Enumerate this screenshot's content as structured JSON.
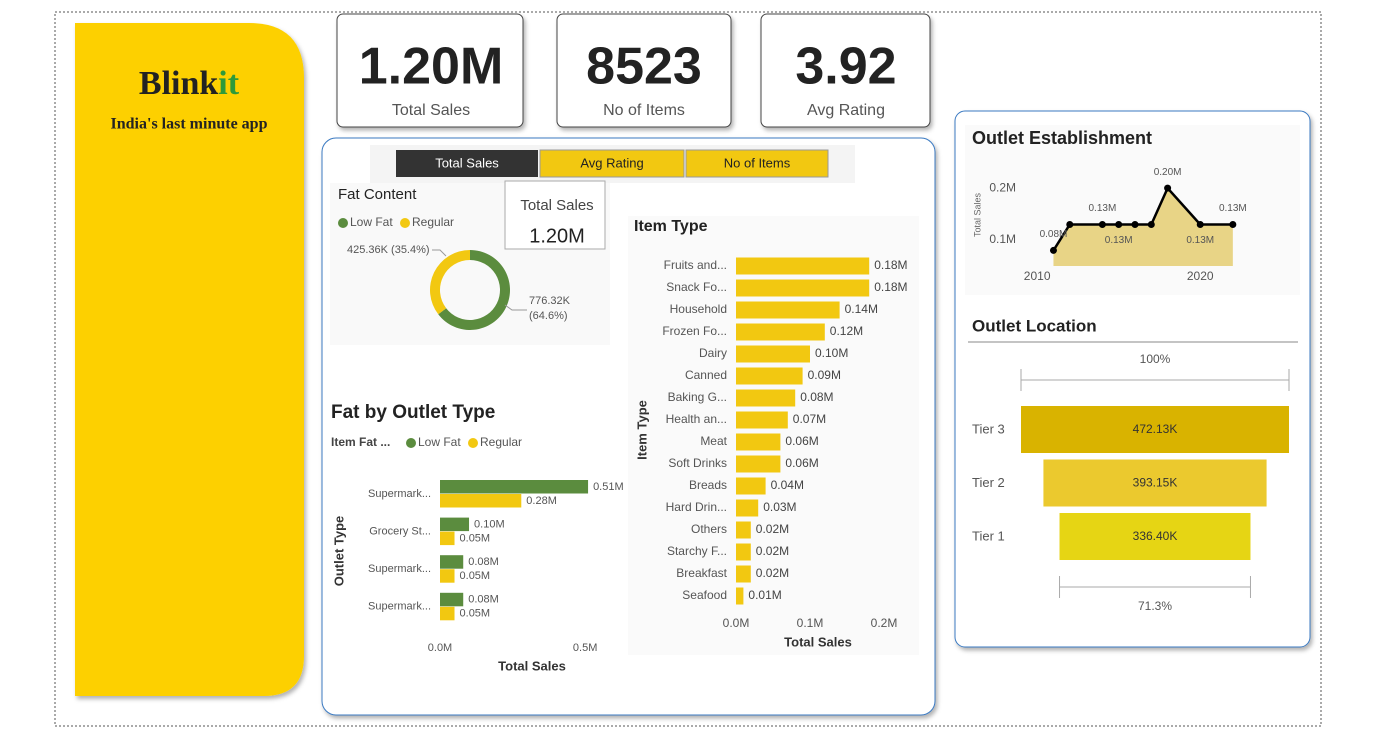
{
  "brand": {
    "name_part1": "Blink",
    "name_part2": "it",
    "tagline": "India's last minute app"
  },
  "kpis": [
    {
      "value": "1.20M",
      "label": "Total Sales"
    },
    {
      "value": "8523",
      "label": "No of Items"
    },
    {
      "value": "3.92",
      "label": "Avg Rating"
    }
  ],
  "buttons": [
    "Total Sales",
    "Avg Rating",
    "No of Items"
  ],
  "card": {
    "label": "Total Sales",
    "value": "1.20M"
  },
  "chart_data": [
    {
      "type": "pie",
      "title": "Fat Content",
      "categories": [
        "Low Fat",
        "Regular"
      ],
      "colors": [
        "#5b8c3e",
        "#f2c811"
      ],
      "values": [
        776320,
        425360
      ],
      "value_labels": [
        "776.32K (64.6%)",
        "425.36K (35.4%)"
      ],
      "donut": true,
      "legend": "top-left"
    },
    {
      "type": "grouped_hbar",
      "title": "Fat by Outlet Type",
      "legend_title": "Item Fat ...",
      "categories": [
        "Supermark...",
        "Grocery St...",
        "Supermark...",
        "Supermark..."
      ],
      "series": [
        {
          "name": "Low Fat",
          "color": "#5b8c3e",
          "values": [
            0.51,
            0.1,
            0.08,
            0.08
          ],
          "value_labels": [
            "0.51M",
            "0.10M",
            "0.08M",
            "0.08M"
          ]
        },
        {
          "name": "Regular",
          "color": "#f2c811",
          "values": [
            0.28,
            0.05,
            0.05,
            0.05
          ],
          "value_labels": [
            "0.28M",
            "0.05M",
            "0.05M",
            "0.05M"
          ]
        }
      ],
      "xlim": [
        0,
        0.62
      ],
      "xticks": [
        {
          "value": 0,
          "label": "0.0M"
        },
        {
          "value": 0.5,
          "label": "0.5M"
        }
      ],
      "xlabel": "Total Sales",
      "ylabel": "Outlet Type",
      "legend": "top-left"
    },
    {
      "type": "hbar",
      "title": "Item Type",
      "color": "#f2c811",
      "categories": [
        "Fruits and...",
        "Snack Fo...",
        "Household",
        "Frozen Fo...",
        "Dairy",
        "Canned",
        "Baking G...",
        "Health an...",
        "Meat",
        "Soft Drinks",
        "Breads",
        "Hard Drin...",
        "Others",
        "Starchy F...",
        "Breakfast",
        "Seafood"
      ],
      "values": [
        0.18,
        0.18,
        0.14,
        0.12,
        0.1,
        0.09,
        0.08,
        0.07,
        0.06,
        0.06,
        0.04,
        0.03,
        0.02,
        0.02,
        0.02,
        0.01
      ],
      "value_labels": [
        "0.18M",
        "0.18M",
        "0.14M",
        "0.12M",
        "0.10M",
        "0.09M",
        "0.08M",
        "0.07M",
        "0.06M",
        "0.06M",
        "0.04M",
        "0.03M",
        "0.02M",
        "0.02M",
        "0.02M",
        "0.01M"
      ],
      "xlim": [
        0,
        0.2
      ],
      "xticks": [
        {
          "value": 0,
          "label": "0.0M"
        },
        {
          "value": 0.1,
          "label": "0.1M"
        },
        {
          "value": 0.2,
          "label": "0.2M"
        }
      ],
      "xlabel": "Total Sales",
      "ylabel": "Item Type"
    },
    {
      "type": "area",
      "title": "Outlet Establishment",
      "color": "#e8d486",
      "line_color": "#000000",
      "x": [
        2011,
        2012,
        2014,
        2015,
        2016,
        2017,
        2018,
        2020,
        2022
      ],
      "values": [
        0.08,
        0.13,
        0.13,
        0.13,
        0.13,
        0.13,
        0.2,
        0.13,
        0.13
      ],
      "value_labels": [
        "0.08M",
        null,
        "0.13M",
        "0.13M",
        null,
        null,
        "0.20M",
        "0.13M",
        "0.13M"
      ],
      "xlim": [
        2009.5,
        2022.5
      ],
      "xticks": [
        2010,
        2020
      ],
      "ylim": [
        0.05,
        0.235
      ],
      "yticks": [
        {
          "value": 0.1,
          "label": "0.1M"
        },
        {
          "value": 0.2,
          "label": "0.2M"
        }
      ],
      "ylabel": "Total Sales"
    },
    {
      "type": "funnel",
      "title": "Outlet Location",
      "categories": [
        "Tier 3",
        "Tier 2",
        "Tier 1"
      ],
      "values": [
        472130,
        393150,
        336400
      ],
      "value_labels": [
        "472.13K",
        "393.15K",
        "336.40K"
      ],
      "colors": [
        "#d9b300",
        "#ebc92e",
        "#e6d514"
      ],
      "top_label": "100%",
      "bottom_label": "71.3%"
    }
  ]
}
